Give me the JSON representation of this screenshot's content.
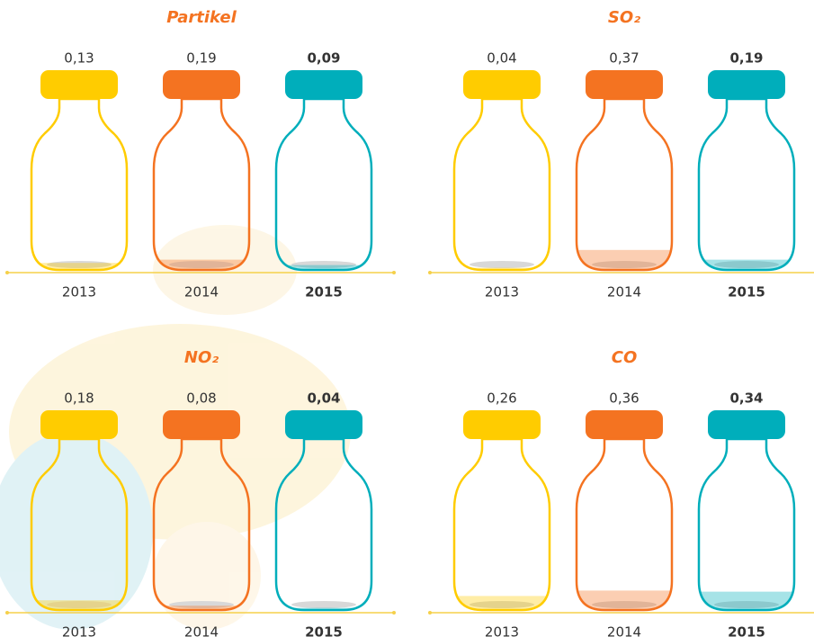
{
  "chart_data": [
    {
      "type": "bottle",
      "title": "Partikel",
      "categories": [
        "2013",
        "2014",
        "2015"
      ],
      "values": [
        0.13,
        0.19,
        0.09
      ],
      "value_labels": [
        "0,13",
        "0,19",
        "0,09"
      ],
      "colors": [
        "#ffcc00",
        "#f47321",
        "#00aebb"
      ]
    },
    {
      "type": "bottle",
      "title": "SO₂",
      "categories": [
        "2013",
        "2014",
        "2015"
      ],
      "values": [
        0.04,
        0.37,
        0.19
      ],
      "value_labels": [
        "0,04",
        "0,37",
        "0,19"
      ],
      "colors": [
        "#ffcc00",
        "#f47321",
        "#00aebb"
      ]
    },
    {
      "type": "bottle",
      "title": "NO₂",
      "categories": [
        "2013",
        "2014",
        "2015"
      ],
      "values": [
        0.18,
        0.08,
        0.04
      ],
      "value_labels": [
        "0,18",
        "0,08",
        "0,04"
      ],
      "colors": [
        "#ffcc00",
        "#f47321",
        "#00aebb"
      ]
    },
    {
      "type": "bottle",
      "title": "CO",
      "categories": [
        "2013",
        "2014",
        "2015"
      ],
      "values": [
        0.26,
        0.36,
        0.34
      ],
      "value_labels": [
        "0,26",
        "0,36",
        "0,34"
      ],
      "colors": [
        "#ffcc00",
        "#f47321",
        "#00aebb"
      ]
    }
  ]
}
